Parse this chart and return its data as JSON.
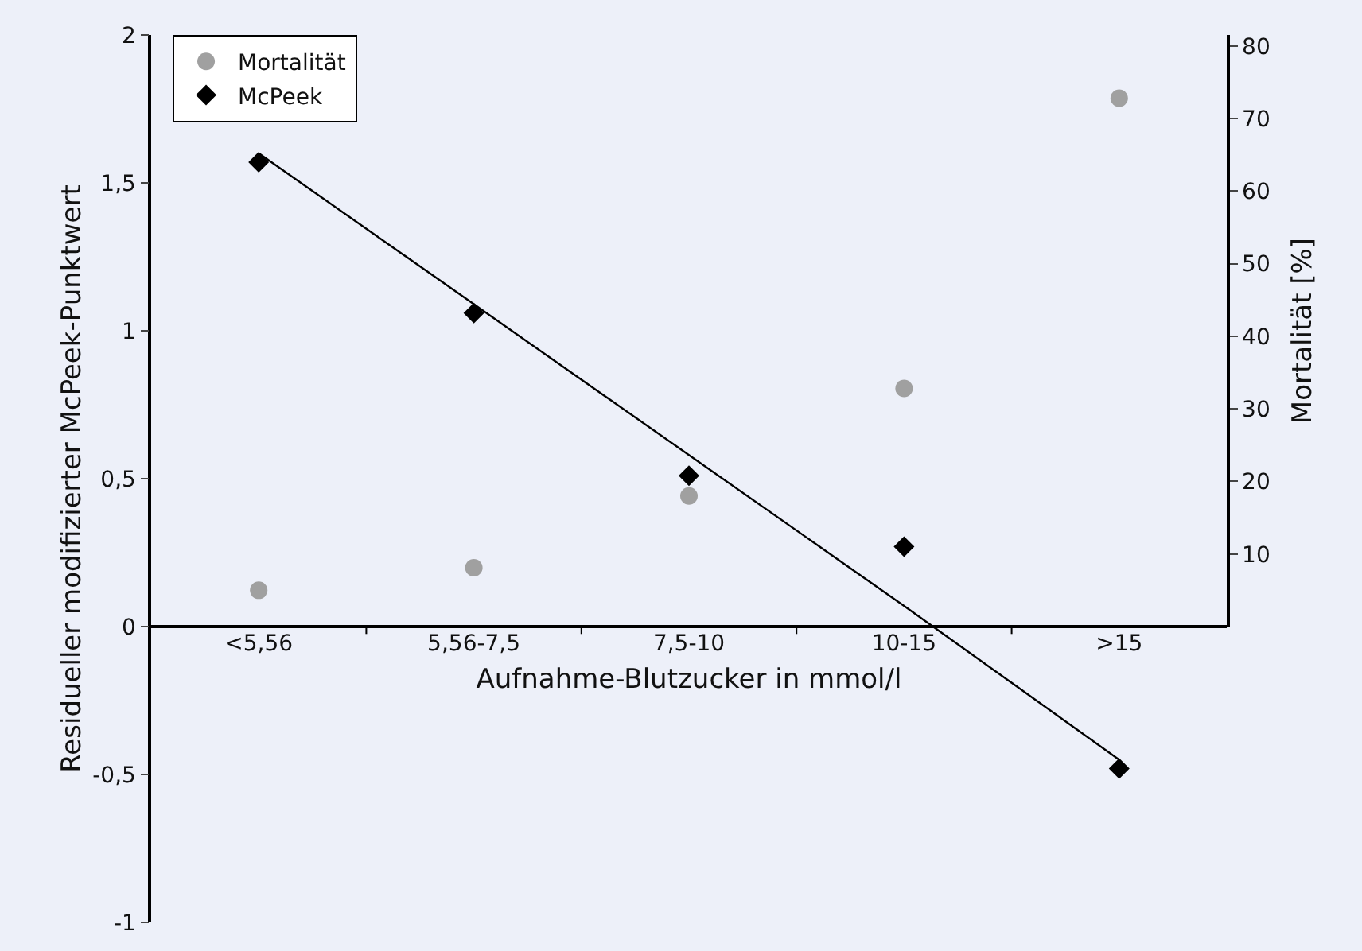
{
  "chart_data": {
    "type": "scatter",
    "xlabel": "Aufnahme-Blutzucker in mmol/l",
    "ylabel": "Residueller modifizierter McPeek-Punktwert",
    "y2label": "Mortalität [%]",
    "categories": [
      "<5,56",
      "5,56-7,5",
      "7,5-10",
      "10-15",
      ">15"
    ],
    "series": [
      {
        "name": "Mortalität",
        "color": "#a0a0a0",
        "marker": "circle",
        "axis": "y2",
        "values": [
          5.0,
          8.1,
          18.0,
          32.8,
          72.8
        ]
      },
      {
        "name": "McPeek",
        "color": "#000000",
        "marker": "diamond",
        "values": [
          1.57,
          1.06,
          0.51,
          0.27,
          -0.48
        ]
      },
      {
        "type": "line",
        "color": "#000000",
        "marker": "none",
        "line_style": "solid",
        "values": [
          1.6,
          1.09,
          0.58,
          0.07,
          -0.45
        ]
      }
    ],
    "ylim": [
      -1,
      2
    ],
    "yticks": [
      {
        "value": -1,
        "label": "-1"
      },
      {
        "value": -0.5,
        "label": "-0,5"
      },
      0,
      {
        "value": 0.5,
        "label": "0,5"
      },
      1,
      {
        "value": 1.5,
        "label": "1,5"
      },
      2
    ],
    "y2lim": [
      0,
      81.5
    ],
    "y2ticks": [
      10,
      20,
      30,
      40,
      50,
      60,
      70,
      80
    ],
    "grid": false,
    "legend": "top left"
  }
}
